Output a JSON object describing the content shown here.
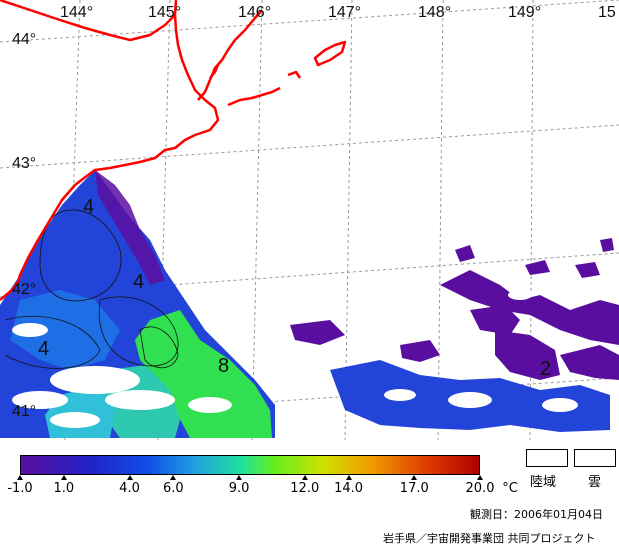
{
  "map": {
    "lon_labels": [
      "144°",
      "145°",
      "146°",
      "147°",
      "148°",
      "149°",
      "15"
    ],
    "lat_labels": [
      "44°",
      "43°",
      "42°",
      "41°"
    ],
    "contour_labels": [
      "4",
      "4",
      "4",
      "8",
      "2"
    ],
    "colors": {
      "background": "#ffffff",
      "coastline": "#ff0000",
      "grid": "#9a9a9a",
      "cold": "#5a0ea0",
      "blue": "#2244d8",
      "mid_blue": "#1e6ee6",
      "green": "#30e050",
      "cyan": "#2ec8b0"
    }
  },
  "colorbar": {
    "tick_labels": [
      "-1.0",
      "1.0",
      "4.0",
      "6.0",
      "9.0",
      "12.0",
      "14.0",
      "17.0",
      "20.0"
    ],
    "tick_values": [
      -1.0,
      1.0,
      4.0,
      6.0,
      9.0,
      12.0,
      14.0,
      17.0,
      20.0
    ],
    "range": [
      -1.0,
      20.0
    ],
    "unit": "°C",
    "legend_land": "陸域",
    "legend_cloud": "雲"
  },
  "footer": {
    "observation_date": "観測日：2006年01月04日",
    "credit": "岩手県／宇宙開発事業団 共同プロジェクト"
  }
}
